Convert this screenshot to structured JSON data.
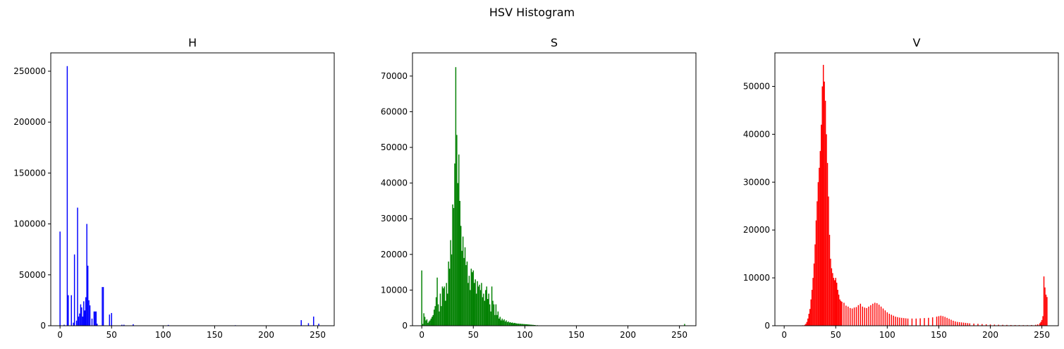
{
  "figure": {
    "title": "HSV Histogram"
  },
  "chart_data": [
    {
      "type": "bar",
      "title": "H",
      "xlabel": "",
      "ylabel": "",
      "color": "#0000ff",
      "xlim": [
        -9,
        266
      ],
      "ylim": [
        0,
        268000
      ],
      "xticks": [
        0,
        50,
        100,
        150,
        200,
        250
      ],
      "yticks": [
        0,
        50000,
        100000,
        150000,
        200000,
        250000
      ],
      "grid": false,
      "bin_width": 1,
      "bins": [
        {
          "x": 0,
          "value": 92500
        },
        {
          "x": 4,
          "value": 1000
        },
        {
          "x": 7,
          "value": 255000
        },
        {
          "x": 8,
          "value": 30000
        },
        {
          "x": 11,
          "value": 30000
        },
        {
          "x": 13,
          "value": 3000
        },
        {
          "x": 14,
          "value": 70000
        },
        {
          "x": 16,
          "value": 5000
        },
        {
          "x": 17,
          "value": 116000
        },
        {
          "x": 18,
          "value": 9000
        },
        {
          "x": 19,
          "value": 12000
        },
        {
          "x": 20,
          "value": 21000
        },
        {
          "x": 21,
          "value": 18000
        },
        {
          "x": 22,
          "value": 9000
        },
        {
          "x": 23,
          "value": 24000
        },
        {
          "x": 24,
          "value": 15000
        },
        {
          "x": 25,
          "value": 28000
        },
        {
          "x": 26,
          "value": 100000
        },
        {
          "x": 27,
          "value": 59000
        },
        {
          "x": 28,
          "value": 25000
        },
        {
          "x": 29,
          "value": 20000
        },
        {
          "x": 31,
          "value": 7000
        },
        {
          "x": 33,
          "value": 14000
        },
        {
          "x": 34,
          "value": 14000
        },
        {
          "x": 35,
          "value": 14000
        },
        {
          "x": 36,
          "value": 2000
        },
        {
          "x": 41,
          "value": 38000
        },
        {
          "x": 42,
          "value": 38000
        },
        {
          "x": 48,
          "value": 11000
        },
        {
          "x": 50,
          "value": 12500
        },
        {
          "x": 60,
          "value": 1000
        },
        {
          "x": 62,
          "value": 1000
        },
        {
          "x": 71,
          "value": 1500
        },
        {
          "x": 105,
          "value": 800
        },
        {
          "x": 170,
          "value": 500
        },
        {
          "x": 234,
          "value": 5500
        },
        {
          "x": 241,
          "value": 2500
        },
        {
          "x": 246,
          "value": 9000
        },
        {
          "x": 251,
          "value": 2000
        }
      ]
    },
    {
      "type": "bar",
      "title": "S",
      "xlabel": "",
      "ylabel": "",
      "color": "#008000",
      "xlim": [
        -9,
        266
      ],
      "ylim": [
        0,
        76500
      ],
      "xticks": [
        0,
        50,
        100,
        150,
        200,
        250
      ],
      "yticks": [
        0,
        10000,
        20000,
        30000,
        40000,
        50000,
        60000,
        70000
      ],
      "grid": false,
      "bin_width": 1,
      "bins": [
        {
          "x": 0,
          "value": 15500
        },
        {
          "x": 1,
          "value": 500
        },
        {
          "x": 2,
          "value": 3500
        },
        {
          "x": 3,
          "value": 2500
        },
        {
          "x": 4,
          "value": 1500
        },
        {
          "x": 5,
          "value": 1800
        },
        {
          "x": 6,
          "value": 800
        },
        {
          "x": 7,
          "value": 1200
        },
        {
          "x": 8,
          "value": 1500
        },
        {
          "x": 9,
          "value": 2000
        },
        {
          "x": 10,
          "value": 2500
        },
        {
          "x": 11,
          "value": 3000
        },
        {
          "x": 12,
          "value": 4500
        },
        {
          "x": 13,
          "value": 5500
        },
        {
          "x": 14,
          "value": 8000
        },
        {
          "x": 15,
          "value": 13500
        },
        {
          "x": 16,
          "value": 6000
        },
        {
          "x": 17,
          "value": 4000
        },
        {
          "x": 18,
          "value": 9000
        },
        {
          "x": 19,
          "value": 5500
        },
        {
          "x": 20,
          "value": 11000
        },
        {
          "x": 21,
          "value": 10500
        },
        {
          "x": 22,
          "value": 11000
        },
        {
          "x": 23,
          "value": 7000
        },
        {
          "x": 24,
          "value": 12000
        },
        {
          "x": 25,
          "value": 9000
        },
        {
          "x": 26,
          "value": 18000
        },
        {
          "x": 27,
          "value": 16000
        },
        {
          "x": 28,
          "value": 24000
        },
        {
          "x": 29,
          "value": 20000
        },
        {
          "x": 30,
          "value": 34000
        },
        {
          "x": 31,
          "value": 33000
        },
        {
          "x": 32,
          "value": 45500
        },
        {
          "x": 33,
          "value": 72500
        },
        {
          "x": 34,
          "value": 53500
        },
        {
          "x": 35,
          "value": 40000
        },
        {
          "x": 36,
          "value": 48000
        },
        {
          "x": 37,
          "value": 35000
        },
        {
          "x": 38,
          "value": 28000
        },
        {
          "x": 39,
          "value": 21000
        },
        {
          "x": 40,
          "value": 25000
        },
        {
          "x": 41,
          "value": 19000
        },
        {
          "x": 42,
          "value": 22000
        },
        {
          "x": 43,
          "value": 17000
        },
        {
          "x": 44,
          "value": 18000
        },
        {
          "x": 45,
          "value": 12000
        },
        {
          "x": 46,
          "value": 14000
        },
        {
          "x": 47,
          "value": 10000
        },
        {
          "x": 48,
          "value": 16000
        },
        {
          "x": 49,
          "value": 15000
        },
        {
          "x": 50,
          "value": 15500
        },
        {
          "x": 51,
          "value": 12000
        },
        {
          "x": 52,
          "value": 13000
        },
        {
          "x": 53,
          "value": 9000
        },
        {
          "x": 54,
          "value": 12500
        },
        {
          "x": 55,
          "value": 11000
        },
        {
          "x": 56,
          "value": 11500
        },
        {
          "x": 57,
          "value": 10000
        },
        {
          "x": 58,
          "value": 12000
        },
        {
          "x": 59,
          "value": 8000
        },
        {
          "x": 60,
          "value": 9000
        },
        {
          "x": 61,
          "value": 7000
        },
        {
          "x": 62,
          "value": 10000
        },
        {
          "x": 63,
          "value": 11000
        },
        {
          "x": 64,
          "value": 7500
        },
        {
          "x": 65,
          "value": 9000
        },
        {
          "x": 66,
          "value": 6000
        },
        {
          "x": 67,
          "value": 4000
        },
        {
          "x": 68,
          "value": 11000
        },
        {
          "x": 69,
          "value": 7000
        },
        {
          "x": 70,
          "value": 6000
        },
        {
          "x": 71,
          "value": 3000
        },
        {
          "x": 72,
          "value": 6000
        },
        {
          "x": 73,
          "value": 3000
        },
        {
          "x": 74,
          "value": 4000
        },
        {
          "x": 75,
          "value": 2000
        },
        {
          "x": 76,
          "value": 2500
        },
        {
          "x": 77,
          "value": 1500
        },
        {
          "x": 78,
          "value": 2000
        },
        {
          "x": 79,
          "value": 1500
        },
        {
          "x": 80,
          "value": 1800
        },
        {
          "x": 81,
          "value": 1200
        },
        {
          "x": 82,
          "value": 1500
        },
        {
          "x": 83,
          "value": 1000
        },
        {
          "x": 84,
          "value": 1200
        },
        {
          "x": 85,
          "value": 900
        },
        {
          "x": 86,
          "value": 1000
        },
        {
          "x": 87,
          "value": 800
        },
        {
          "x": 88,
          "value": 900
        },
        {
          "x": 89,
          "value": 700
        },
        {
          "x": 90,
          "value": 800
        },
        {
          "x": 91,
          "value": 700
        },
        {
          "x": 92,
          "value": 650
        },
        {
          "x": 93,
          "value": 600
        },
        {
          "x": 94,
          "value": 600
        },
        {
          "x": 95,
          "value": 550
        },
        {
          "x": 96,
          "value": 550
        },
        {
          "x": 97,
          "value": 500
        },
        {
          "x": 98,
          "value": 500
        },
        {
          "x": 99,
          "value": 450
        },
        {
          "x": 100,
          "value": 450
        },
        {
          "x": 101,
          "value": 400
        },
        {
          "x": 102,
          "value": 400
        },
        {
          "x": 103,
          "value": 350
        },
        {
          "x": 104,
          "value": 350
        },
        {
          "x": 105,
          "value": 300
        },
        {
          "x": 106,
          "value": 300
        },
        {
          "x": 107,
          "value": 250
        },
        {
          "x": 108,
          "value": 250
        },
        {
          "x": 109,
          "value": 200
        },
        {
          "x": 110,
          "value": 200
        },
        {
          "x": 112,
          "value": 150
        },
        {
          "x": 114,
          "value": 100
        },
        {
          "x": 116,
          "value": 100
        },
        {
          "x": 118,
          "value": 80
        },
        {
          "x": 120,
          "value": 60
        },
        {
          "x": 125,
          "value": 40
        },
        {
          "x": 130,
          "value": 30
        },
        {
          "x": 255,
          "value": 500
        }
      ]
    },
    {
      "type": "bar",
      "title": "V",
      "xlabel": "",
      "ylabel": "",
      "color": "#ff0000",
      "xlim": [
        -9,
        266
      ],
      "ylim": [
        0,
        57000
      ],
      "xticks": [
        0,
        50,
        100,
        150,
        200,
        250
      ],
      "yticks": [
        0,
        10000,
        20000,
        30000,
        40000,
        50000
      ],
      "grid": false,
      "bin_width": 1,
      "bins": [
        {
          "x": 18,
          "value": 100
        },
        {
          "x": 20,
          "value": 200
        },
        {
          "x": 21,
          "value": 400
        },
        {
          "x": 22,
          "value": 800
        },
        {
          "x": 23,
          "value": 1500
        },
        {
          "x": 24,
          "value": 2500
        },
        {
          "x": 25,
          "value": 3500
        },
        {
          "x": 26,
          "value": 5500
        },
        {
          "x": 27,
          "value": 7500
        },
        {
          "x": 28,
          "value": 10000
        },
        {
          "x": 29,
          "value": 13000
        },
        {
          "x": 30,
          "value": 17000
        },
        {
          "x": 31,
          "value": 22000
        },
        {
          "x": 32,
          "value": 26000
        },
        {
          "x": 33,
          "value": 30000
        },
        {
          "x": 34,
          "value": 33000
        },
        {
          "x": 35,
          "value": 36500
        },
        {
          "x": 36,
          "value": 42000
        },
        {
          "x": 37,
          "value": 50000
        },
        {
          "x": 38,
          "value": 54500
        },
        {
          "x": 39,
          "value": 51000
        },
        {
          "x": 40,
          "value": 47000
        },
        {
          "x": 41,
          "value": 40000
        },
        {
          "x": 42,
          "value": 34000
        },
        {
          "x": 43,
          "value": 27000
        },
        {
          "x": 44,
          "value": 19000
        },
        {
          "x": 45,
          "value": 14000
        },
        {
          "x": 46,
          "value": 12000
        },
        {
          "x": 47,
          "value": 11000
        },
        {
          "x": 48,
          "value": 10000
        },
        {
          "x": 49,
          "value": 9500
        },
        {
          "x": 50,
          "value": 10000
        },
        {
          "x": 51,
          "value": 9000
        },
        {
          "x": 52,
          "value": 7500
        },
        {
          "x": 53,
          "value": 6500
        },
        {
          "x": 54,
          "value": 5500
        },
        {
          "x": 55,
          "value": 5200
        },
        {
          "x": 56,
          "value": 5000
        },
        {
          "x": 58,
          "value": 4800
        },
        {
          "x": 60,
          "value": 4200
        },
        {
          "x": 62,
          "value": 4000
        },
        {
          "x": 64,
          "value": 3700
        },
        {
          "x": 66,
          "value": 3600
        },
        {
          "x": 68,
          "value": 3800
        },
        {
          "x": 70,
          "value": 3900
        },
        {
          "x": 72,
          "value": 4300
        },
        {
          "x": 74,
          "value": 4600
        },
        {
          "x": 76,
          "value": 4000
        },
        {
          "x": 78,
          "value": 3800
        },
        {
          "x": 80,
          "value": 3700
        },
        {
          "x": 82,
          "value": 4000
        },
        {
          "x": 84,
          "value": 4300
        },
        {
          "x": 86,
          "value": 4600
        },
        {
          "x": 88,
          "value": 4800
        },
        {
          "x": 90,
          "value": 4700
        },
        {
          "x": 92,
          "value": 4400
        },
        {
          "x": 94,
          "value": 4000
        },
        {
          "x": 96,
          "value": 3600
        },
        {
          "x": 98,
          "value": 3200
        },
        {
          "x": 100,
          "value": 2800
        },
        {
          "x": 102,
          "value": 2500
        },
        {
          "x": 104,
          "value": 2300
        },
        {
          "x": 106,
          "value": 2100
        },
        {
          "x": 108,
          "value": 1900
        },
        {
          "x": 110,
          "value": 1800
        },
        {
          "x": 112,
          "value": 1700
        },
        {
          "x": 114,
          "value": 1650
        },
        {
          "x": 116,
          "value": 1600
        },
        {
          "x": 118,
          "value": 1550
        },
        {
          "x": 120,
          "value": 1500
        },
        {
          "x": 124,
          "value": 1500
        },
        {
          "x": 128,
          "value": 1500
        },
        {
          "x": 132,
          "value": 1550
        },
        {
          "x": 136,
          "value": 1600
        },
        {
          "x": 140,
          "value": 1650
        },
        {
          "x": 144,
          "value": 1750
        },
        {
          "x": 148,
          "value": 1900
        },
        {
          "x": 150,
          "value": 2000
        },
        {
          "x": 152,
          "value": 2100
        },
        {
          "x": 154,
          "value": 2000
        },
        {
          "x": 156,
          "value": 1850
        },
        {
          "x": 158,
          "value": 1650
        },
        {
          "x": 160,
          "value": 1450
        },
        {
          "x": 162,
          "value": 1250
        },
        {
          "x": 164,
          "value": 1050
        },
        {
          "x": 166,
          "value": 900
        },
        {
          "x": 168,
          "value": 800
        },
        {
          "x": 170,
          "value": 750
        },
        {
          "x": 172,
          "value": 700
        },
        {
          "x": 174,
          "value": 650
        },
        {
          "x": 176,
          "value": 600
        },
        {
          "x": 178,
          "value": 550
        },
        {
          "x": 180,
          "value": 500
        },
        {
          "x": 184,
          "value": 450
        },
        {
          "x": 188,
          "value": 400
        },
        {
          "x": 192,
          "value": 350
        },
        {
          "x": 196,
          "value": 300
        },
        {
          "x": 200,
          "value": 270
        },
        {
          "x": 204,
          "value": 240
        },
        {
          "x": 208,
          "value": 210
        },
        {
          "x": 212,
          "value": 190
        },
        {
          "x": 216,
          "value": 170
        },
        {
          "x": 220,
          "value": 150
        },
        {
          "x": 224,
          "value": 140
        },
        {
          "x": 228,
          "value": 130
        },
        {
          "x": 232,
          "value": 120
        },
        {
          "x": 236,
          "value": 120
        },
        {
          "x": 240,
          "value": 150
        },
        {
          "x": 244,
          "value": 200
        },
        {
          "x": 246,
          "value": 300
        },
        {
          "x": 248,
          "value": 500
        },
        {
          "x": 249,
          "value": 800
        },
        {
          "x": 250,
          "value": 1200
        },
        {
          "x": 251,
          "value": 2000
        },
        {
          "x": 252,
          "value": 10300
        },
        {
          "x": 253,
          "value": 8000
        },
        {
          "x": 254,
          "value": 6500
        },
        {
          "x": 255,
          "value": 6000
        }
      ]
    }
  ]
}
